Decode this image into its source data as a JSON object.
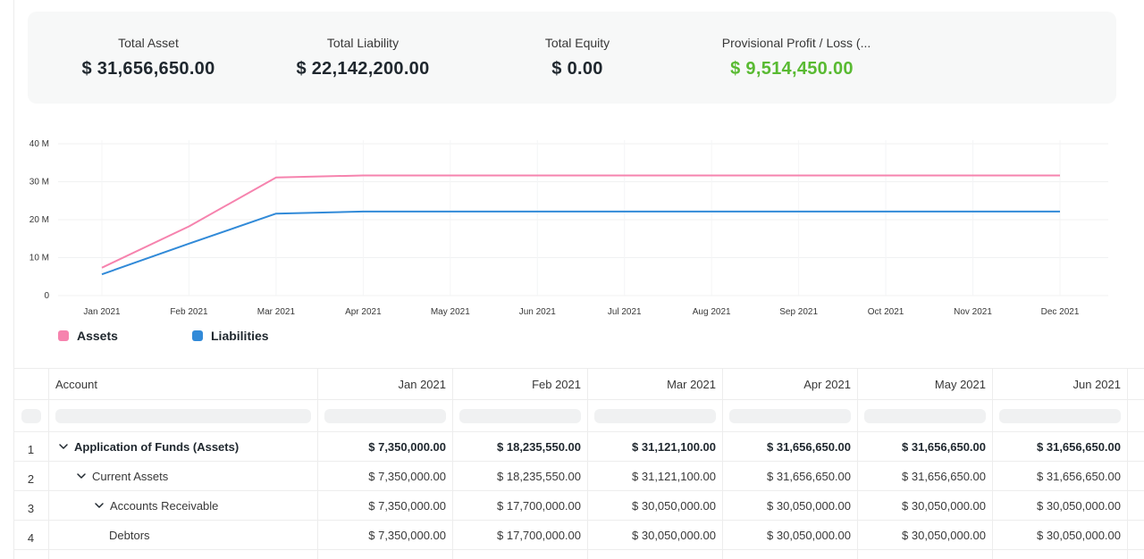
{
  "summary": {
    "total_asset": {
      "label": "Total Asset",
      "value": "$ 31,656,650.00"
    },
    "total_liability": {
      "label": "Total Liability",
      "value": "$ 22,142,200.00"
    },
    "total_equity": {
      "label": "Total Equity",
      "value": "$ 0.00"
    },
    "provisional_pl": {
      "label": "Provisional Profit / Loss (...",
      "value": "$ 9,514,450.00",
      "color": "#59ba32"
    }
  },
  "chart_data": {
    "type": "line",
    "categories": [
      "Jan 2021",
      "Feb 2021",
      "Mar 2021",
      "Apr 2021",
      "May 2021",
      "Jun 2021",
      "Jul 2021",
      "Aug 2021",
      "Sep 2021",
      "Oct 2021",
      "Nov 2021",
      "Dec 2021"
    ],
    "y_ticks": [
      "0",
      "10 M",
      "20 M",
      "30 M",
      "40 M"
    ],
    "ylim": [
      0,
      40000000
    ],
    "grid": true,
    "legend_placement": "bottom-left",
    "series": [
      {
        "name": "Assets",
        "color": "#f683ae",
        "values": [
          7350000,
          18235550,
          31121100,
          31656650,
          31656650,
          31656650,
          31656650,
          31656650,
          31656650,
          31656650,
          31656650,
          31656650
        ]
      },
      {
        "name": "Liabilities",
        "color": "#318ad8",
        "values": [
          5600000,
          13700000,
          21600000,
          22142200,
          22142200,
          22142200,
          22142200,
          22142200,
          22142200,
          22142200,
          22142200,
          22142200
        ]
      }
    ]
  },
  "table": {
    "columns": [
      "Account",
      "Jan 2021",
      "Feb 2021",
      "Mar 2021",
      "Apr 2021",
      "May 2021",
      "Jun 2021"
    ],
    "rows": [
      {
        "idx": "1",
        "account": "Application of Funds (Assets)",
        "values": [
          "$ 7,350,000.00",
          "$ 18,235,550.00",
          "$ 31,121,100.00",
          "$ 31,656,650.00",
          "$ 31,656,650.00",
          "$ 31,656,650.00"
        ]
      },
      {
        "idx": "2",
        "account": "Current Assets",
        "values": [
          "$ 7,350,000.00",
          "$ 18,235,550.00",
          "$ 31,121,100.00",
          "$ 31,656,650.00",
          "$ 31,656,650.00",
          "$ 31,656,650.00"
        ]
      },
      {
        "idx": "3",
        "account": "Accounts Receivable",
        "values": [
          "$ 7,350,000.00",
          "$ 17,700,000.00",
          "$ 30,050,000.00",
          "$ 30,050,000.00",
          "$ 30,050,000.00",
          "$ 30,050,000.00"
        ]
      },
      {
        "idx": "4",
        "account": "Debtors",
        "values": [
          "$ 7,350,000.00",
          "$ 17,700,000.00",
          "$ 30,050,000.00",
          "$ 30,050,000.00",
          "$ 30,050,000.00",
          "$ 30,050,000.00"
        ]
      }
    ]
  }
}
